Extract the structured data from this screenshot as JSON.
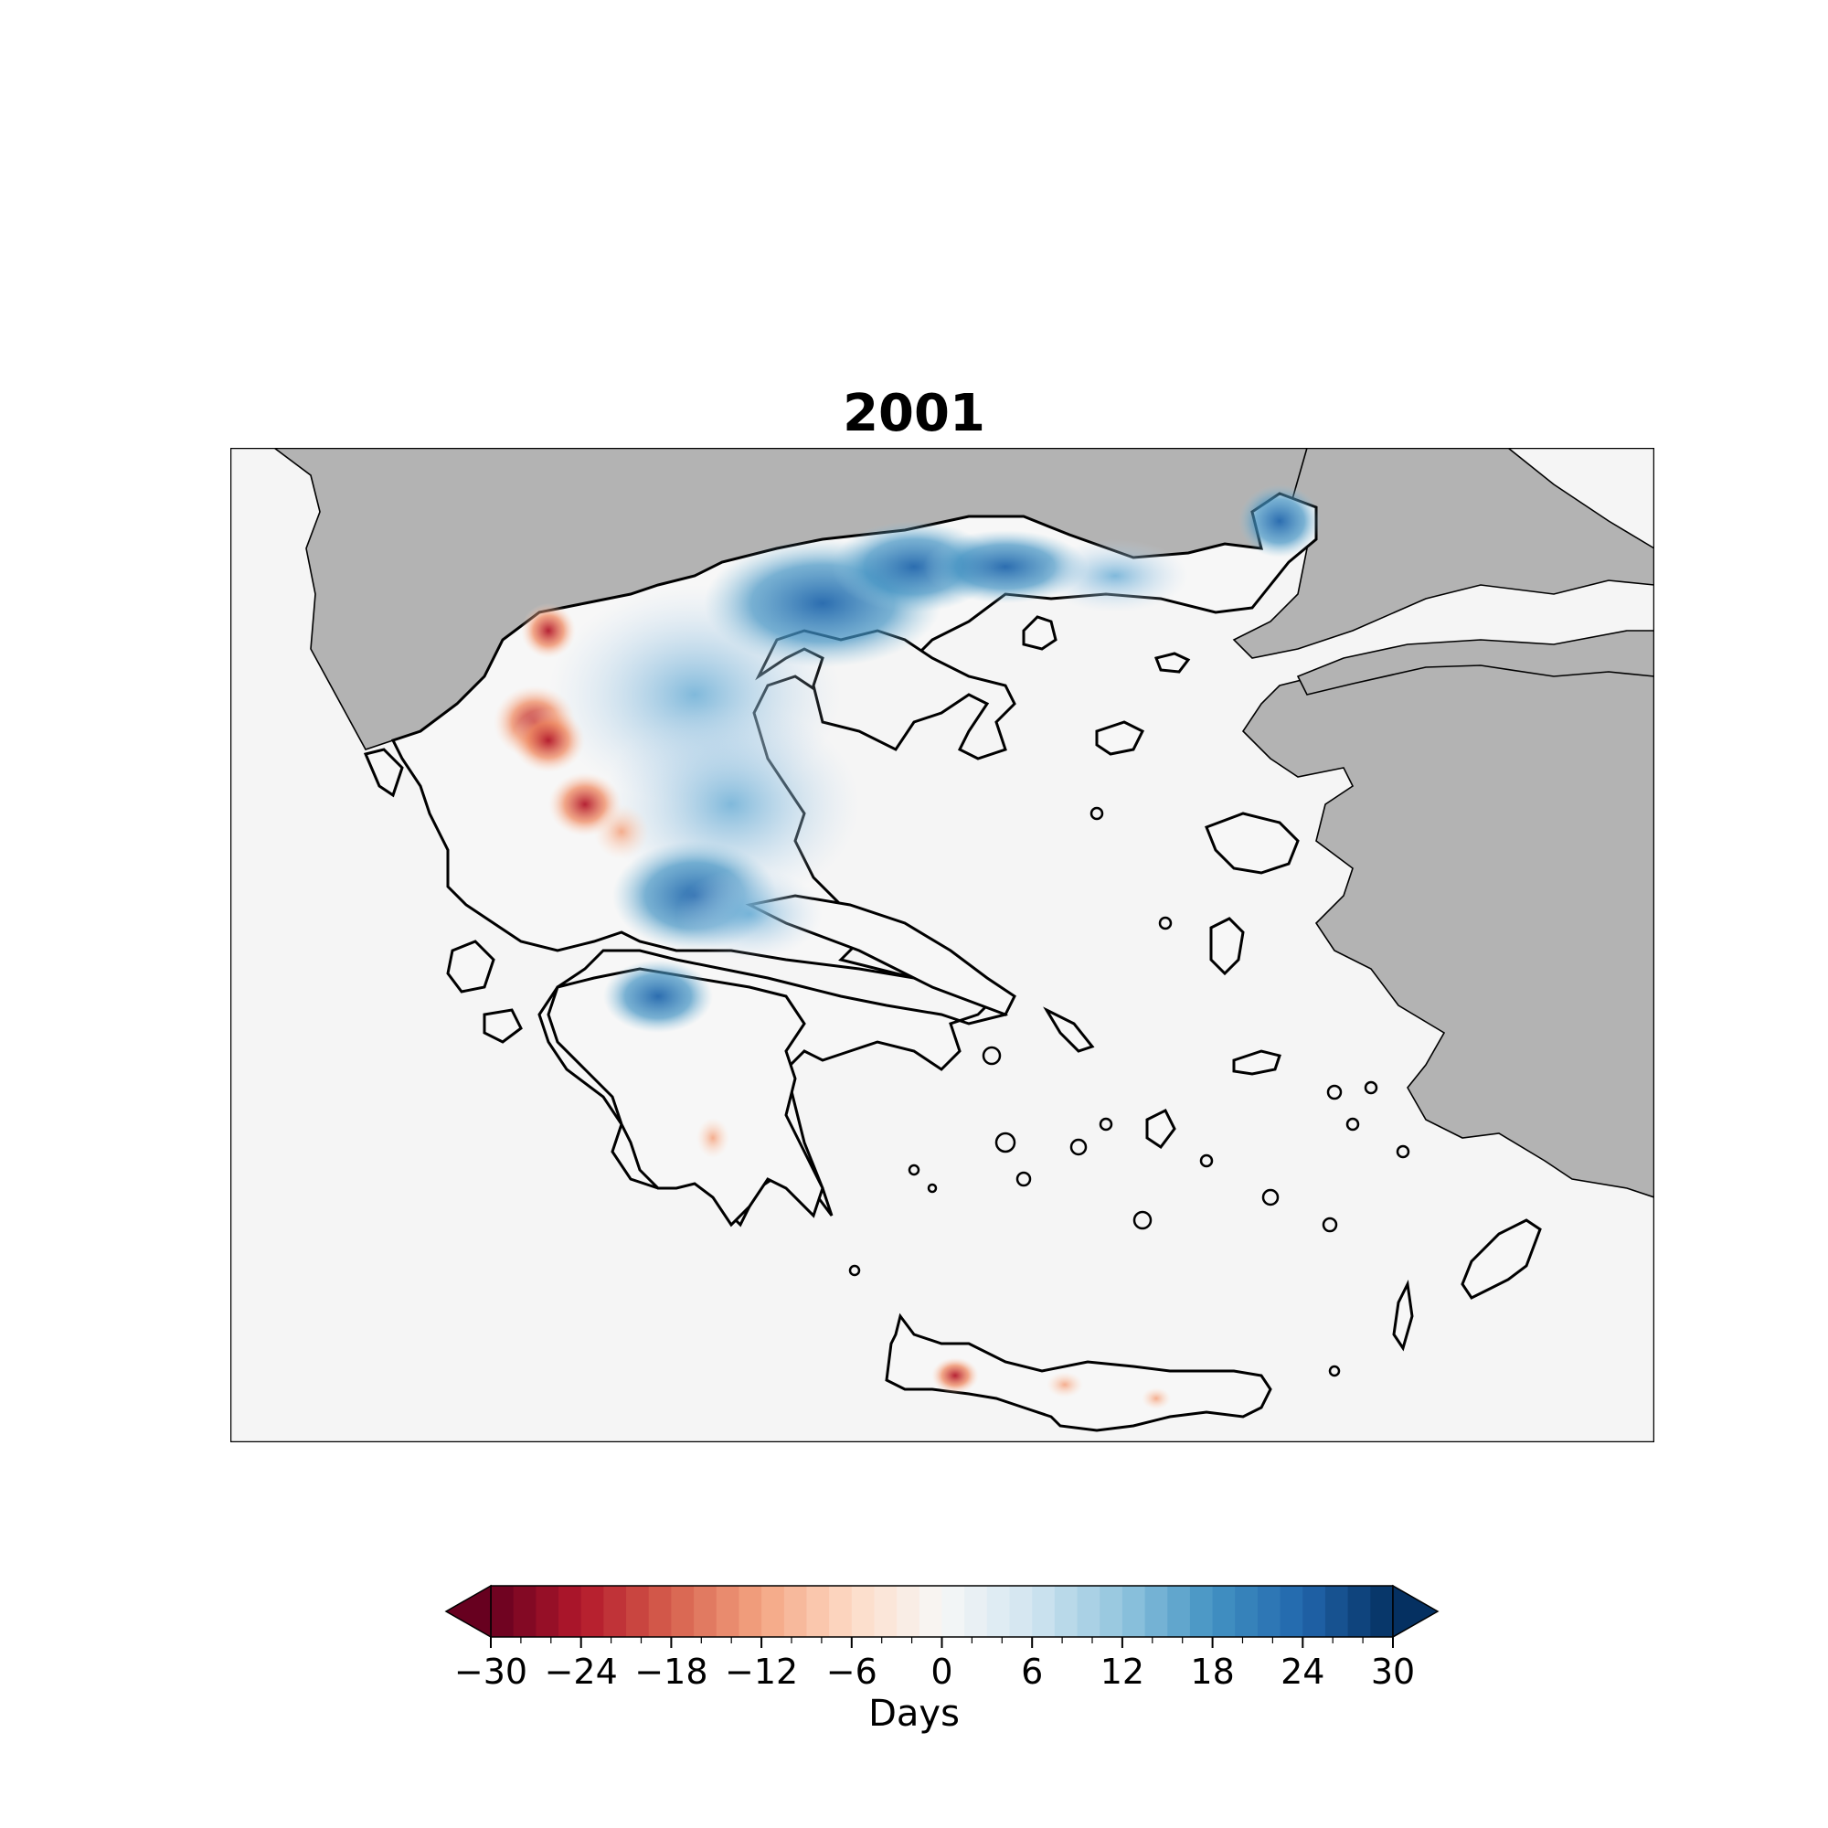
{
  "map": {
    "title": "2001",
    "colors": {
      "sea": "#f5f5f5",
      "land_outside": "#b3b3b3",
      "coast": "#000000"
    },
    "colorbar": {
      "label": "Days",
      "min": -30,
      "max": 30,
      "ticks": [
        -30,
        -24,
        -18,
        -12,
        -6,
        0,
        6,
        12,
        18,
        24,
        30
      ],
      "tick_labels": [
        "−30",
        "−24",
        "−18",
        "−12",
        "−6",
        "0",
        "6",
        "12",
        "18",
        "24",
        "30"
      ],
      "palette": "RdBu",
      "extend": "both"
    }
  }
}
